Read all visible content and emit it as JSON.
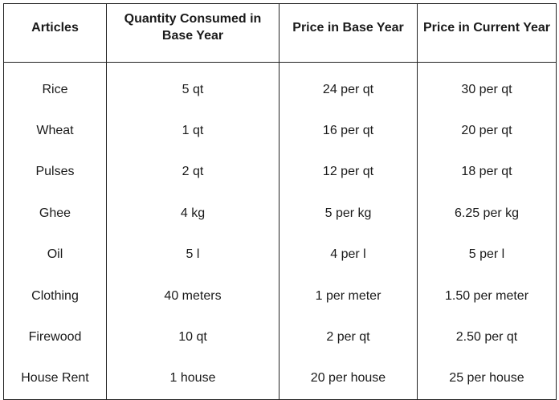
{
  "table": {
    "headers": [
      "Articles",
      "Quantity Consumed in Base Year",
      "Price in Base Year",
      "Price in Current Year"
    ],
    "rows": [
      [
        "Rice",
        "5 qt",
        "24 per qt",
        "30 per qt"
      ],
      [
        "Wheat",
        "1 qt",
        "16 per qt",
        "20 per qt"
      ],
      [
        "Pulses",
        "2 qt",
        "12 per qt",
        "18 per qt"
      ],
      [
        "Ghee",
        "4 kg",
        "5 per kg",
        "6.25 per kg"
      ],
      [
        "Oil",
        "5 l",
        "4 per l",
        "5 per l"
      ],
      [
        "Clothing",
        "40 meters",
        "1 per meter",
        "1.50 per meter"
      ],
      [
        "Firewood",
        "10 qt",
        "2 per qt",
        "2.50 per qt"
      ],
      [
        "House Rent",
        "1 house",
        "20 per house",
        "25 per house"
      ]
    ]
  }
}
